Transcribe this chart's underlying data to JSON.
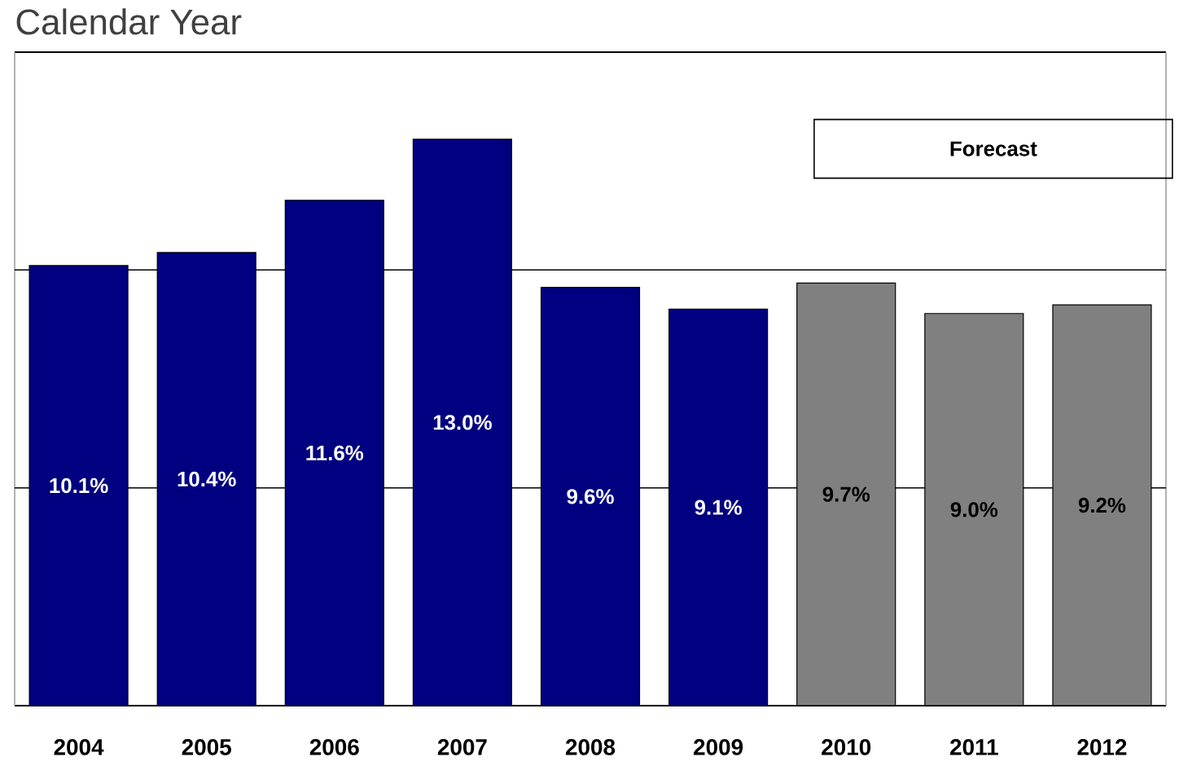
{
  "chart_data": {
    "type": "bar",
    "title": "Calendar Year",
    "categories": [
      "2004",
      "2005",
      "2006",
      "2007",
      "2008",
      "2009",
      "2010",
      "2011",
      "2012"
    ],
    "values": [
      10.1,
      10.4,
      11.6,
      13.0,
      9.6,
      9.1,
      9.7,
      9.0,
      9.2
    ],
    "colors": [
      "#000080",
      "#000080",
      "#000080",
      "#000080",
      "#000080",
      "#000080",
      "#808080",
      "#808080",
      "#808080"
    ],
    "value_labels": [
      "10.1%",
      "10.4%",
      "11.6%",
      "13.0%",
      "9.6%",
      "9.1%",
      "9.7%",
      "9.0%",
      "9.2%"
    ],
    "ylim": [
      0,
      15
    ],
    "tick_labels": "x",
    "ref_lines": [
      {
        "axis": "y",
        "value": 5,
        "color": "#000000"
      },
      {
        "axis": "y",
        "value": 10,
        "color": "#000000"
      }
    ],
    "annotations": [
      "Forecast"
    ]
  }
}
